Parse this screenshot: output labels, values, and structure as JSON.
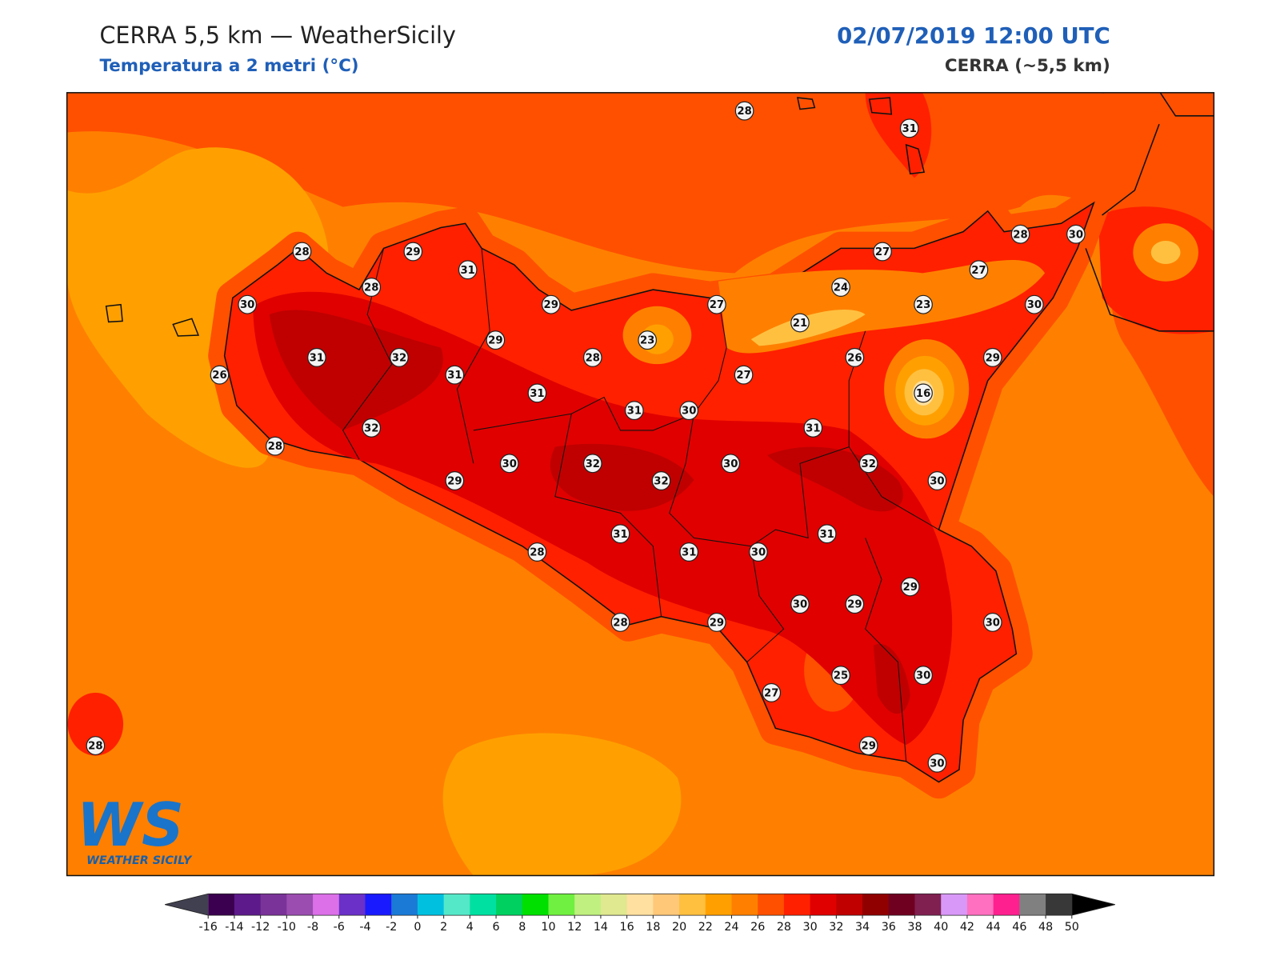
{
  "title": "CERRA 5,5 km — WeatherSicily",
  "subtitle": "Temperatura a 2 metri (°C)",
  "datetime": "02/07/2019 12:00 UTC",
  "model": "CERRA (~5,5 km)",
  "stations": [
    28,
    31,
    28,
    29,
    31,
    28,
    30,
    29,
    27,
    28,
    30,
    27,
    24,
    27,
    23,
    30,
    21,
    29,
    23,
    31,
    32,
    28,
    26,
    29,
    31,
    26,
    27,
    31,
    16,
    31,
    30,
    32,
    31,
    28,
    30,
    32,
    30,
    32,
    29,
    32,
    30,
    31,
    31,
    28,
    31,
    30,
    29,
    30,
    29,
    28,
    29,
    30,
    25,
    30,
    27,
    29,
    30,
    28
  ],
  "colorbar": {
    "ticks": [
      -16,
      -14,
      -12,
      -10,
      -8,
      -6,
      -4,
      -2,
      0,
      2,
      4,
      6,
      8,
      10,
      12,
      14,
      16,
      18,
      20,
      22,
      24,
      26,
      28,
      30,
      32,
      34,
      36,
      38,
      40,
      42,
      44,
      46,
      48,
      50
    ],
    "colors": [
      "#3b0050",
      "#5c1a8a",
      "#7a3399",
      "#9b4db0",
      "#db70e8",
      "#6a30c8",
      "#1a1aff",
      "#1a7ad6",
      "#00c0e0",
      "#55e8c8",
      "#00e0a0",
      "#00d060",
      "#00e000",
      "#70f040",
      "#c0f080",
      "#e0e890",
      "#ffe0a0",
      "#ffc878",
      "#ffc040",
      "#ffa000",
      "#ff8000",
      "#ff5000",
      "#ff2000",
      "#e00000",
      "#c00000",
      "#900000",
      "#700020",
      "#802050",
      "#d898f8",
      "#ff70c0",
      "#ff2090",
      "#808080",
      "#383838"
    ],
    "under_color": "#404050",
    "over_color": "#000000"
  },
  "logo": {
    "mark": "WS",
    "text": "WEATHER SICILY"
  }
}
